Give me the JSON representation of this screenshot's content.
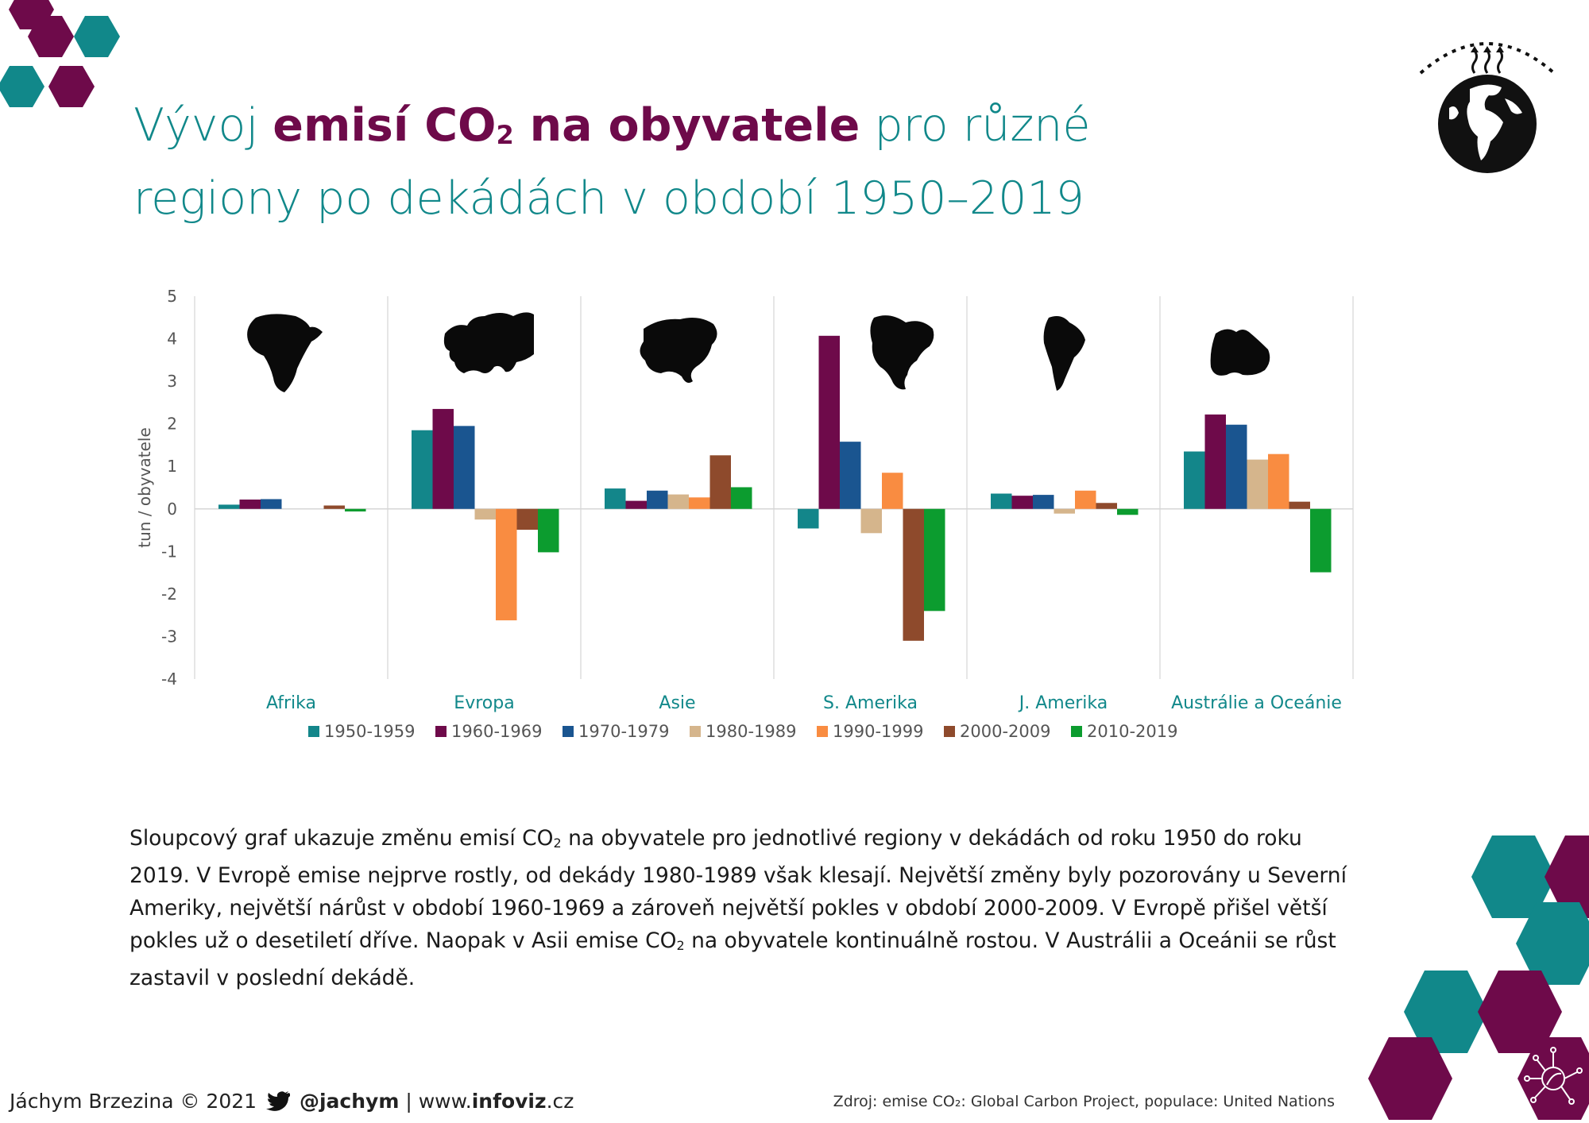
{
  "title": {
    "part1": "Vývoj ",
    "highlight_main": "emisí CO",
    "highlight_sub": "2",
    "highlight_rest": " na obyvatele",
    "part2": " pro různé",
    "line2": "regiony po dekádách v období 1950–2019"
  },
  "colors": {
    "teal": "#11888a",
    "plum": "#6e0a4a",
    "text": "#1a1a1a"
  },
  "chart_data": {
    "type": "bar",
    "categories": [
      "Afrika",
      "Evropa",
      "Asie",
      "S. Amerika",
      "J. Amerika",
      "Austrálie a Oceánie"
    ],
    "category_icons": [
      "africa-silhouette",
      "europe-silhouette",
      "asia-silhouette",
      "north-america-silhouette",
      "south-america-silhouette",
      "australia-oceania-silhouette"
    ],
    "series": [
      {
        "name": "1950-1959",
        "color": "#13868a",
        "values": [
          0.1,
          1.85,
          0.48,
          -0.46,
          0.36,
          1.35
        ]
      },
      {
        "name": "1960-1969",
        "color": "#6e0a4a",
        "values": [
          0.22,
          2.35,
          0.19,
          4.07,
          0.31,
          2.22
        ]
      },
      {
        "name": "1970-1979",
        "color": "#1a5590",
        "values": [
          0.23,
          1.95,
          0.43,
          1.58,
          0.33,
          1.98
        ]
      },
      {
        "name": "1980-1989",
        "color": "#d5b58c",
        "values": [
          0.0,
          -0.25,
          0.34,
          -0.57,
          -0.11,
          1.16
        ]
      },
      {
        "name": "1990-1999",
        "color": "#f98c41",
        "values": [
          0.0,
          -2.62,
          0.27,
          0.85,
          0.43,
          1.29
        ]
      },
      {
        "name": "2000-2009",
        "color": "#8e4a2c",
        "values": [
          0.08,
          -0.49,
          1.26,
          -3.1,
          0.14,
          0.17
        ]
      },
      {
        "name": "2010-2019",
        "color": "#0c9c2f",
        "values": [
          -0.06,
          -1.02,
          0.51,
          -2.4,
          -0.14,
          -1.49
        ]
      }
    ],
    "ylabel": "tun / obyvatele",
    "ylim": [
      -4,
      5
    ],
    "yticks": [
      "-4",
      "-3",
      "-2",
      "-1",
      "0",
      "1",
      "2",
      "3",
      "4",
      "5"
    ],
    "grid": "vertical separators",
    "legend_position": "bottom"
  },
  "description": {
    "text1": "Sloupcový graf ukazuje změnu emisí CO",
    "sub1": "2",
    "text2": " na obyvatele pro jednotlivé regiony v dekádách od roku 1950 do roku 2019. V Evropě emise nejprve rostly, od dekády 1980-1989 však klesají. Největší změny byly pozorovány u Severní Ameriky, největší nárůst v období 1960-1969 a zároveň největší pokles v období 2000-2009. V Evropě přišel větší pokles už o desetiletí dříve. Naopak v Asii emise CO",
    "sub2": "2",
    "text3": " na obyvatele kontinuálně rostou. V Austrálii a Oceánii se růst zastavil v poslední dekádě."
  },
  "footer": {
    "author": "Jáchym Brzezina © 2021",
    "twitter_icon": "twitter-bird-icon",
    "handle": "@jachym",
    "separator": "|",
    "domain_prefix": "www.",
    "domain_bold": "infoviz",
    "domain_suffix": ".cz",
    "source": "Zdroj: emise CO₂: Global Carbon Project, populace: United Nations"
  },
  "icons": {
    "globe": "globe-warming-icon",
    "network": "leaf-network-icon"
  }
}
